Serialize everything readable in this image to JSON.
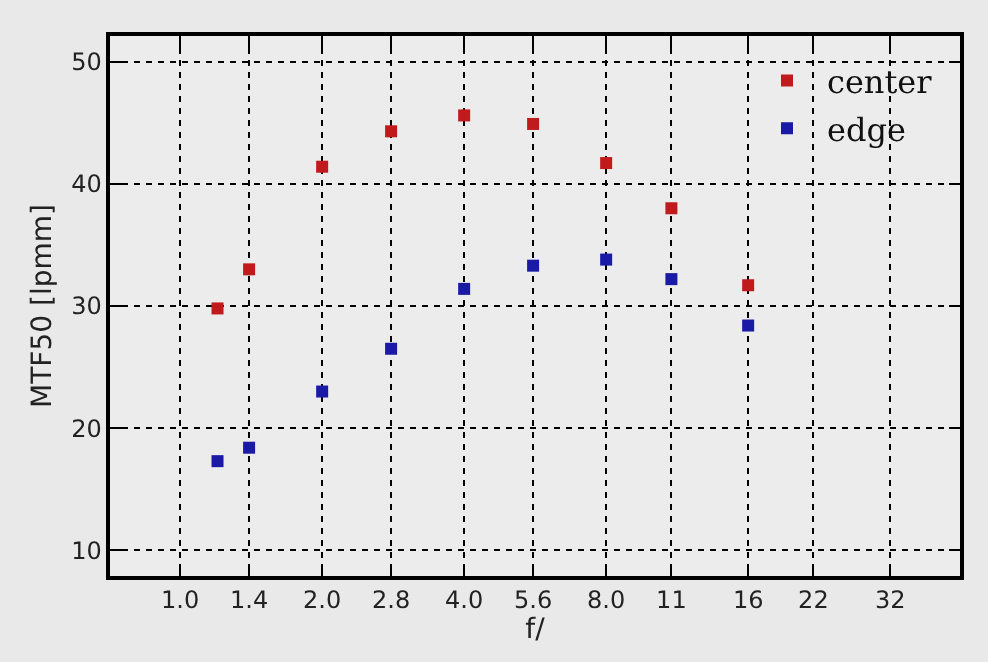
{
  "chart_data": {
    "type": "scatter",
    "xlabel": "f/",
    "ylabel": "MTF50 [lpmm]",
    "log": "x",
    "x": [
      1.2,
      1.4,
      2.0,
      2.8,
      4.0,
      5.6,
      8.0,
      11,
      16
    ],
    "series": [
      {
        "name": "center",
        "color": "#c01a1c",
        "values": [
          29.8,
          33.0,
          41.4,
          44.3,
          45.6,
          44.9,
          41.7,
          38.0,
          31.7
        ]
      },
      {
        "name": "edge",
        "color": "#1a1aa6",
        "values": [
          17.3,
          18.4,
          23.0,
          26.5,
          31.4,
          33.3,
          33.8,
          32.2,
          28.4
        ]
      }
    ],
    "xlim": [
      0.71,
      45
    ],
    "xticks": [
      {
        "value": 1.0,
        "label": "1.0"
      },
      1.4,
      {
        "value": 2.0,
        "label": "2.0"
      },
      2.8,
      {
        "value": 4.0,
        "label": "4.0"
      },
      5.6,
      {
        "value": 8.0,
        "label": "8.0"
      },
      11,
      16,
      22,
      32
    ],
    "ylim": [
      7.9,
      52.1
    ],
    "yticks": [
      10,
      20,
      30,
      40,
      50
    ],
    "grid": true,
    "legend": "top right",
    "marker": "square"
  }
}
